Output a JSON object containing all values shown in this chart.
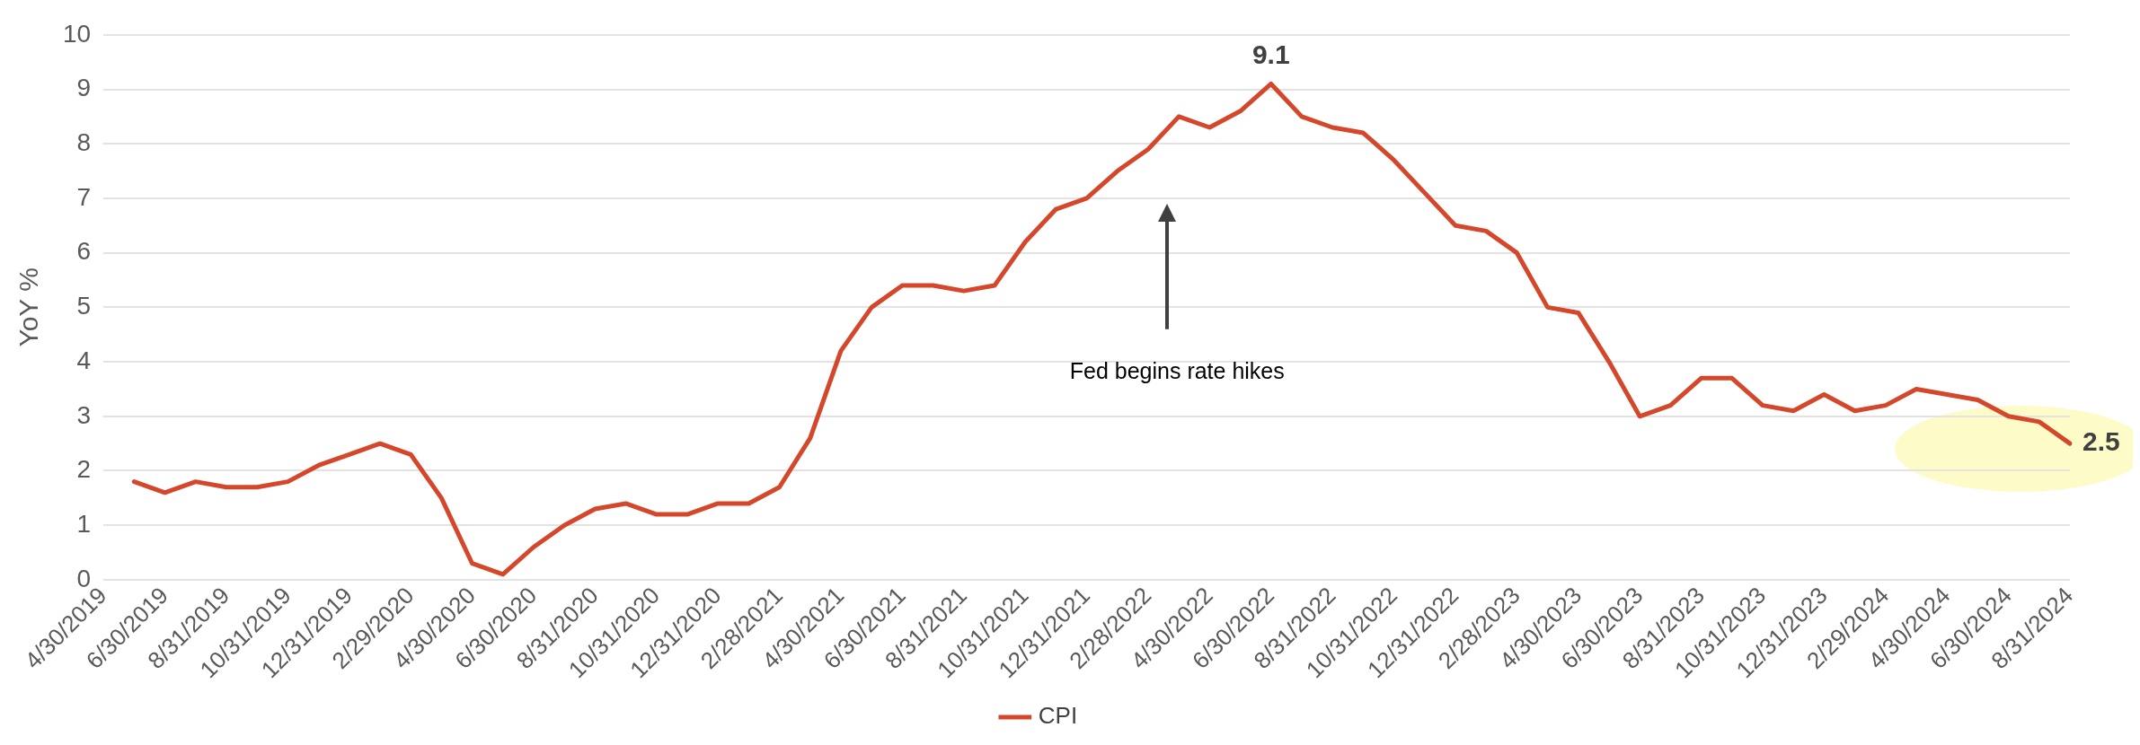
{
  "chart_data": {
    "type": "line",
    "ylabel": "YoY %",
    "categories": [
      "4/30/2019",
      null,
      "6/30/2019",
      null,
      "8/31/2019",
      null,
      "10/31/2019",
      null,
      "12/31/2019",
      null,
      "2/29/2020",
      null,
      "4/30/2020",
      null,
      "6/30/2020",
      null,
      "8/31/2020",
      null,
      "10/31/2020",
      null,
      "12/31/2020",
      null,
      "2/28/2021",
      null,
      "4/30/2021",
      null,
      "6/30/2021",
      null,
      "8/31/2021",
      null,
      "10/31/2021",
      null,
      "12/31/2021",
      null,
      "2/28/2022",
      null,
      "4/30/2022",
      null,
      "6/30/2022",
      null,
      "8/31/2022",
      null,
      "10/31/2022",
      null,
      "12/31/2022",
      null,
      "2/28/2023",
      null,
      "4/30/2023",
      null,
      "6/30/2023",
      null,
      "8/31/2023",
      null,
      "10/31/2023",
      null,
      "12/31/2023",
      null,
      "2/29/2024",
      null,
      "4/30/2024",
      null,
      "6/30/2024",
      null,
      "8/31/2024"
    ],
    "series": [
      {
        "name": "CPI",
        "color": "#d5472a",
        "values": [
          null,
          1.8,
          1.6,
          1.8,
          1.7,
          1.7,
          1.8,
          2.1,
          2.3,
          2.5,
          2.3,
          1.5,
          0.3,
          0.1,
          0.6,
          1.0,
          1.3,
          1.4,
          1.2,
          1.2,
          1.4,
          1.4,
          1.7,
          2.6,
          4.2,
          5.0,
          5.4,
          5.4,
          5.3,
          5.4,
          6.2,
          6.8,
          7.0,
          7.5,
          7.9,
          8.5,
          8.3,
          8.6,
          9.1,
          8.5,
          8.3,
          8.2,
          7.7,
          7.1,
          6.5,
          6.4,
          6.0,
          5.0,
          4.9,
          4.0,
          3.0,
          3.2,
          3.7,
          3.7,
          3.2,
          3.1,
          3.4,
          3.1,
          3.2,
          3.5,
          3.4,
          3.3,
          3.0,
          2.9,
          2.5
        ],
        "value_labels": [
          null,
          null,
          null,
          null,
          null,
          null,
          null,
          null,
          null,
          null,
          null,
          null,
          null,
          null,
          null,
          null,
          null,
          null,
          null,
          null,
          null,
          null,
          null,
          null,
          null,
          null,
          null,
          null,
          null,
          null,
          null,
          null,
          null,
          null,
          null,
          null,
          null,
          null,
          "9.1",
          null,
          null,
          null,
          null,
          null,
          null,
          null,
          null,
          null,
          null,
          null,
          null,
          null,
          null,
          null,
          null,
          null,
          null,
          null,
          null,
          null,
          null,
          null,
          null,
          null,
          "2.5"
        ]
      }
    ],
    "ylim": [
      0,
      10
    ],
    "yticks": [
      0,
      1,
      2,
      3,
      4,
      5,
      6,
      7,
      8,
      9,
      10
    ],
    "grid": "y",
    "legend": "bottom",
    "marker": "none",
    "line_style": "solid",
    "annotations": [
      "Fed begins rate hikes"
    ]
  }
}
